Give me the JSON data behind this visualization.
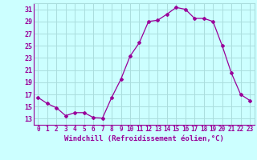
{
  "x": [
    0,
    1,
    2,
    3,
    4,
    5,
    6,
    7,
    8,
    9,
    10,
    11,
    12,
    13,
    14,
    15,
    16,
    17,
    18,
    19,
    20,
    21,
    22,
    23
  ],
  "y": [
    16.5,
    15.5,
    14.8,
    13.5,
    14.0,
    14.0,
    13.2,
    13.1,
    16.5,
    19.5,
    23.3,
    25.5,
    29.0,
    29.2,
    30.2,
    31.3,
    31.0,
    29.5,
    29.5,
    29.0,
    25.0,
    20.5,
    17.0,
    16.0
  ],
  "xlim": [
    -0.5,
    23.5
  ],
  "ylim": [
    12,
    32
  ],
  "yticks": [
    13,
    15,
    17,
    19,
    21,
    23,
    25,
    27,
    29,
    31
  ],
  "xticks": [
    0,
    1,
    2,
    3,
    4,
    5,
    6,
    7,
    8,
    9,
    10,
    11,
    12,
    13,
    14,
    15,
    16,
    17,
    18,
    19,
    20,
    21,
    22,
    23
  ],
  "xlabel": "Windchill (Refroidissement éolien,°C)",
  "line_color": "#990099",
  "marker": "D",
  "marker_size": 2,
  "bg_color": "#ccffff",
  "grid_color": "#aadddd",
  "tick_color": "#990099",
  "label_color": "#990099",
  "xlabel_fontsize": 6.5,
  "ytick_fontsize": 6,
  "xtick_fontsize": 5.5
}
